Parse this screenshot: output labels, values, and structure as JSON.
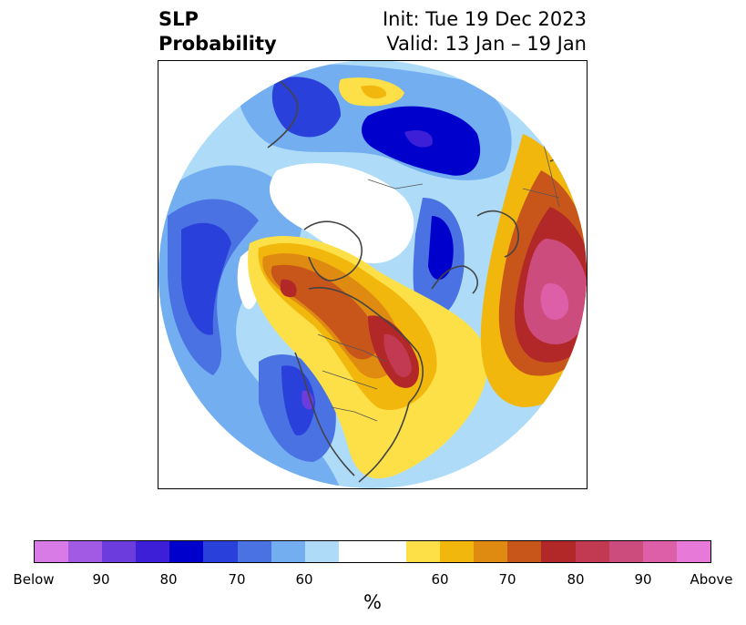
{
  "title": {
    "left_line1": "SLP",
    "left_line2": "Probability",
    "right_line1": "Init: Tue 19 Dec 2023",
    "right_line2": "Valid: 13 Jan – 19 Jan"
  },
  "colorbar": {
    "unit": "%",
    "colors": [
      "#d97be6",
      "#a259e4",
      "#6c3cdd",
      "#3c1fd7",
      "#0000cd",
      "#2a40db",
      "#4a72e3",
      "#72aef0",
      "#aedcf8",
      "#ffffff",
      "#ffffff",
      "#fde047",
      "#f2b70d",
      "#df8b12",
      "#c8561a",
      "#b22727",
      "#c23a52",
      "#cd4c7e",
      "#dc5fa7",
      "#e77ad9"
    ],
    "tick_labels": [
      "Below",
      "90",
      "80",
      "70",
      "60",
      "60",
      "70",
      "80",
      "90",
      "Above"
    ]
  },
  "legend_colors": {
    "below_strong": "#0000cd",
    "below_weak": "#aedcf8",
    "above_weak": "#fde047",
    "above_strong": "#c23a52"
  }
}
